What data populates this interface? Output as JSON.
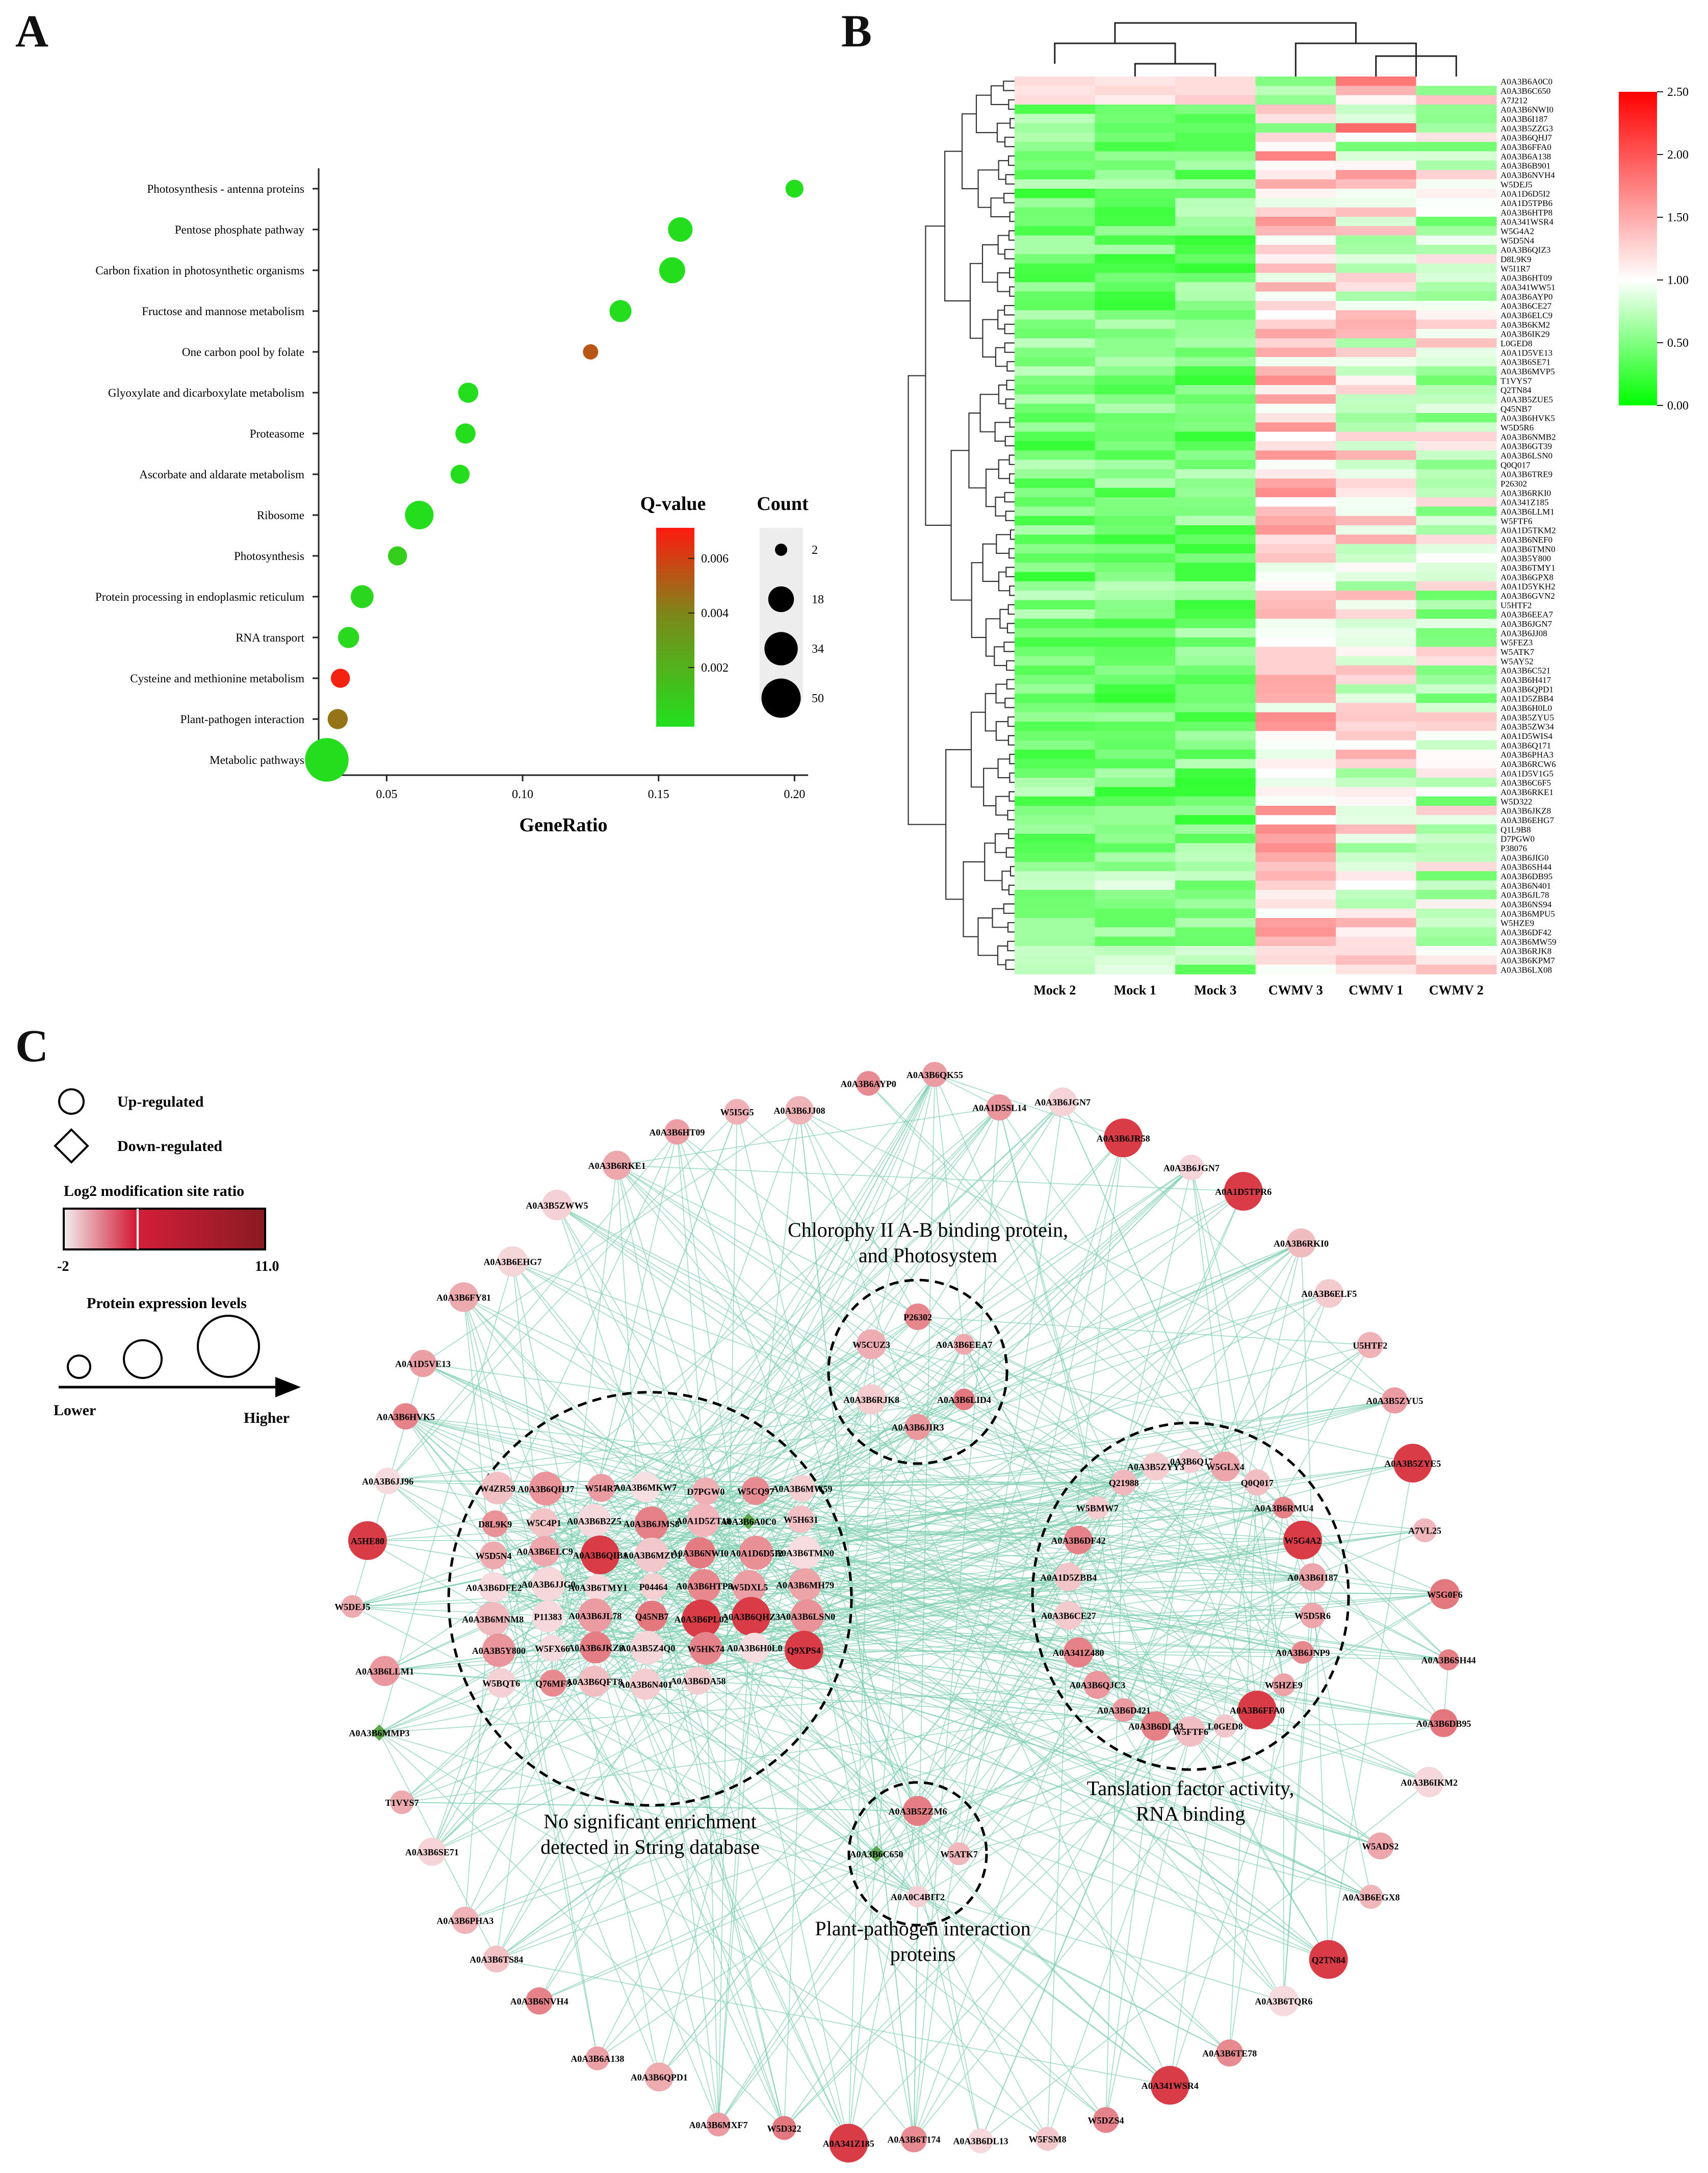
{
  "panels": {
    "a": "A",
    "b": "B",
    "c": "C"
  },
  "chart_data": [
    {
      "type": "scatter",
      "panel": "A",
      "xlabel": "GeneRatio",
      "ylabel": "",
      "xlim": [
        0.025,
        0.205
      ],
      "xticks": [
        0.05,
        0.1,
        0.15,
        0.2
      ],
      "xtick_labels": [
        "0.05",
        "0.10",
        "0.15",
        "0.20"
      ],
      "categories": [
        "Photosynthesis - antenna proteins",
        "Pentose phosphate pathway",
        "Carbon fixation in photosynthetic organisms",
        "Fructose and mannose metabolism",
        "One carbon pool by folate",
        "Glyoxylate and dicarboxylate metabolism",
        "Proteasome",
        "Ascorbate and aldarate metabolism",
        "Ribosome",
        "Photosynthesis",
        "Protein processing in endoplasmic reticulum",
        "RNA transport",
        "Cysteine and methionine metabolism",
        "Plant-pathogen interaction",
        "Metabolic pathways"
      ],
      "gene_ratio": [
        0.2,
        0.158,
        0.155,
        0.136,
        0.125,
        0.08,
        0.079,
        0.077,
        0.062,
        0.054,
        0.041,
        0.036,
        0.033,
        0.032,
        0.028
      ],
      "count": [
        5,
        12,
        14,
        9,
        3,
        7,
        7,
        6,
        18,
        6,
        10,
        8,
        6,
        7,
        50
      ],
      "q_value": [
        0.0001,
        0.0001,
        0.0001,
        0.0001,
        0.0055,
        0.0001,
        0.0001,
        0.0001,
        0.0001,
        0.0008,
        0.0004,
        0.0003,
        0.0072,
        0.0045,
        0.0001
      ],
      "legend": {
        "color_title": "Q-value",
        "color_ticks": [
          "0.006",
          "0.004",
          "0.002"
        ],
        "color_range": [
          0.0,
          0.0075
        ],
        "size_title": "Count",
        "size_ticks": [
          2,
          18,
          34,
          50
        ]
      }
    },
    {
      "type": "heatmap",
      "panel": "B",
      "columns": [
        "Mock 2",
        "Mock 1",
        "Mock 3",
        "CWMV 3",
        "CWMV 1",
        "CWMV 2"
      ],
      "rows": [
        "A0A3B6A0C0",
        "A0A3B6C650",
        "A7J212",
        "A0A3B6NWI0",
        "A0A3B6I187",
        "A0A3B5ZZG3",
        "A0A3B6QHJ7",
        "A0A3B6FFA0",
        "A0A3B6A138",
        "A0A3B6B901",
        "A0A3B6NVH4",
        "W5DEJ5",
        "A0A1D6D5I2",
        "A0A1D5TPB6",
        "A0A3B6HTP8",
        "A0A341WSR4",
        "W5G4A2",
        "W5D5N4",
        "A0A3B6QIZ3",
        "D8L9K9",
        "W5I1R7",
        "A0A3B6HT09",
        "A0A341WW51",
        "A0A3B6AYP0",
        "A0A3B6CE27",
        "A0A3B6ELC9",
        "A0A3B6KM2",
        "A0A3B6IK29",
        "L0GED8",
        "A0A1D5VE13",
        "A0A3B6SE71",
        "A0A3B6MVP5",
        "T1VYS7",
        "Q2TN84",
        "A0A3B5ZUE5",
        "Q45NB7",
        "A0A3B6HVK5",
        "W5D5R6",
        "A0A3B6NMB2",
        "A0A3B6GT39",
        "A0A3B6LSN0",
        "Q0Q017",
        "A0A3B6TRE9",
        "P26302",
        "A0A3B6RKI0",
        "A0A341Z185",
        "A0A3B6LLM1",
        "W5FTF6",
        "A0A1D5TKM2",
        "A0A3B6NEF0",
        "A0A3B6TMN0",
        "A0A3B5Y800",
        "A0A3B6TMY1",
        "A0A3B6GPX8",
        "A0A1D5YKH2",
        "A0A3B6GVN2",
        "U5HTF2",
        "A0A3B6EEA7",
        "A0A3B6JGN7",
        "A0A3B6JJ08",
        "W5FEZ3",
        "W5ATK7",
        "W5AY52",
        "A0A3B6C521",
        "A0A3B6H417",
        "A0A3B6QPD1",
        "A0A1D5ZBB4",
        "A0A3B6H0L0",
        "A0A3B5ZYU5",
        "A0A3B5ZW34",
        "A0A1D5WIS4",
        "A0A3B6Q171",
        "A0A3B6PHA3",
        "A0A3B6RCW6",
        "A0A1D5V1G5",
        "A0A3B6C6F5",
        "A0A3B6RKE1",
        "W5D322",
        "A0A3B6JKZ8",
        "A0A3B6EHG7",
        "Q1L9B8",
        "D7PGW0",
        "P38076",
        "A0A3B6JIG0",
        "A0A3B6SH44",
        "A0A3B6DB95",
        "A0A3B6N401",
        "A0A3B6JL78",
        "A0A3B6NS94",
        "A0A3B6MPU5",
        "W5HZE9",
        "A0A3B6DF42",
        "A0A3B6MW59",
        "A0A3B6RJK8",
        "A0A3B6KPM7",
        "A0A3B6LX08"
      ],
      "color_scale": {
        "min": 0.0,
        "max": 2.5,
        "ticks": [
          "2.50",
          "2.00",
          "1.50",
          "1.00",
          "0.50",
          "0.00"
        ]
      }
    },
    {
      "type": "network",
      "panel": "C",
      "legend": {
        "up": "Up-regulated",
        "down": "Down-regulated",
        "ratio_title": "Log2 modification site ratio",
        "ratio_min": "-2",
        "ratio_max": "11.0",
        "expr_title": "Protein expression levels",
        "expr_low": "Lower",
        "expr_high": "Higher"
      },
      "clusters": [
        {
          "label1": "Chlorophy II A-B binding protein,",
          "label2": "and Photosystem",
          "nodes": [
            "P26302",
            "A0A3B6EEA7",
            "A0A3B6LID4",
            "A0A3B6JIR3",
            "A0A3B6RJK8",
            "W5CUZ3"
          ]
        },
        {
          "label1": "No significant enrichment",
          "label2": "detected in String database",
          "nodes": [
            "W4ZR59",
            "A0A3B6QHJ7",
            "W5I4R7",
            "A0A3B6MKW7",
            "D7PGW0",
            "W5CQ97",
            "A0A3B6MW59",
            "D8L9K9",
            "W5C4P1",
            "A0A3B6B2Z5",
            "A0A3B6JMS8",
            "A0A1D5ZT18",
            "A0A3B6A0C0",
            "W5H631",
            "W5D5N4",
            "A0A3B6ELC9",
            "A0A3B6QIB1",
            "A0A3B6MZU1",
            "A0A3B6NWI0",
            "A0A1D6D5I2",
            "A0A3B6TMN0",
            "A0A3B6DFE2",
            "A0A3B6JJG0",
            "A0A3B6TMY1",
            "P04464",
            "A0A3B6HTP8",
            "W5DXL5",
            "A0A3B6MH79",
            "A0A3B6MNM8",
            "P11383",
            "A0A3B6JL78",
            "Q45NB7",
            "A0A3B6PL02",
            "A0A3B6QHZ3",
            "A0A3B6LSN0",
            "A0A3B5Y800",
            "W5FX66",
            "A0A3B6JKZ8",
            "A0A3B5Z4Q0",
            "W5HK74",
            "A0A3B6H0L0",
            "Q9XPS4",
            "W5BQT6",
            "Q76MF3",
            "A0A3B6QFT8",
            "A0A3B6N401",
            "A0A3B6DA58"
          ]
        },
        {
          "label1": "Tanslation factor activity,",
          "label2": "RNA binding",
          "nodes": [
            "A0A3B6Q171",
            "W5GLX4",
            "Q0Q017",
            "A0A3B6RMU4",
            "W5G4A2",
            "A0A3B6I187",
            "W5D5R6",
            "A0A3B6JNP9",
            "W5HZE9",
            "A0A3B6FFA0",
            "L0GED8",
            "W5FTF6",
            "A0A3B6DL43",
            "A0A3B6D421",
            "A0A3B6QJC3",
            "A0A341Z480",
            "A0A3B6CE27",
            "A0A1D5ZBB4",
            "A0A3B6DF42",
            "W5BMW7",
            "Q21988",
            "A0A3B5ZYY3"
          ]
        },
        {
          "label1": "Plant-pathogen interaction",
          "label2": "proteins",
          "nodes": [
            "A0A3B5ZZM6",
            "W5ATK7",
            "A0A0C4BIT2",
            "A0A3B6C650"
          ]
        }
      ],
      "ring_nodes": [
        "A0A3B6QK55",
        "A0A1D5SL14",
        "A0A3B6JGN7",
        "A0A3B6JR58",
        "A0A3B6JGN7",
        "A0A1D5TPR6",
        "A0A3B6RKI0",
        "A0A3B6ELF5",
        "U5HTF2",
        "A0A3B5ZYU5",
        "A0A3B5ZYE5",
        "A7VL25",
        "W5G0F6",
        "A0A3B6SH44",
        "A0A3B6DB95",
        "A0A3B6IKM2",
        "W5ADS2",
        "A0A3B6EGX8",
        "Q2TN84",
        "A0A3B6TQR6",
        "A0A3B6TE78",
        "A0A341WSR4",
        "W5DZS4",
        "W5FSM8",
        "A0A3B6DL13",
        "A0A3B6T174",
        "A0A341Z185",
        "W5D322",
        "A0A3B6MXF7",
        "A0A3B6QPD1",
        "A0A3B6A138",
        "A0A3B6NVH4",
        "A0A3B6TS84",
        "A0A3B6PHA3",
        "A0A3B6SE71",
        "T1VYS7",
        "A0A3B6MMP3",
        "A0A3B6LLM1",
        "W5DEJ5",
        "A5HE80",
        "A0A3B6JJ96",
        "A0A3B6HVK5",
        "A0A1D5VE13",
        "A0A3B6FY81",
        "A0A3B6EHG7",
        "A0A3B5ZWW5",
        "A0A3B6RKE1",
        "A0A3B6HT09",
        "W5I5G5",
        "A0A3B6JJ08",
        "A0A3B6AYP0"
      ]
    }
  ]
}
